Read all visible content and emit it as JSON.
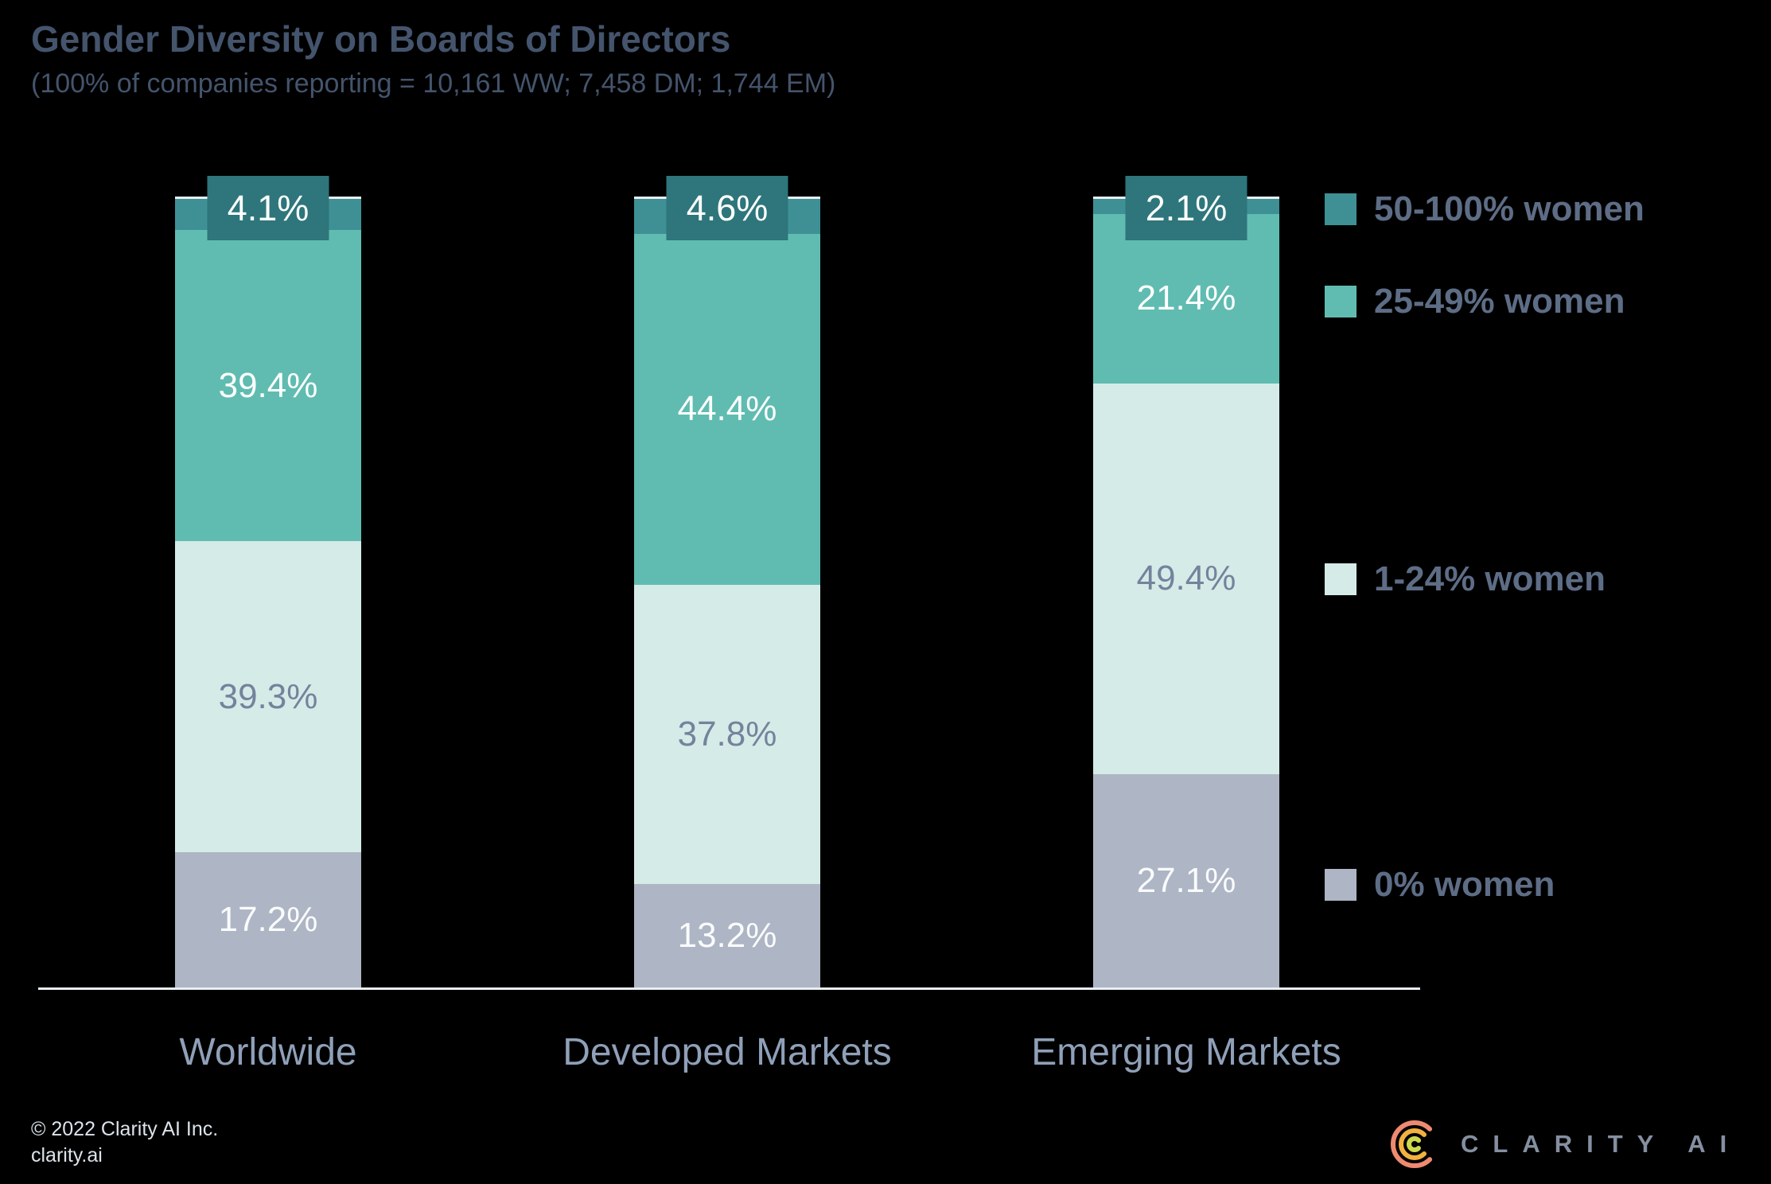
{
  "header": {
    "title": "Gender Diversity on Boards of Directors",
    "subtitle": "(100% of companies reporting = 10,161 WW; 7,458 DM; 1,744 EM)"
  },
  "chart_data": {
    "type": "bar",
    "stacked": true,
    "title": "Gender Diversity on Boards of Directors",
    "subtitle": "(100% of companies reporting = 10,161 WW; 7,458 DM; 1,744 EM)",
    "categories": [
      "Worldwide",
      "Developed Markets",
      "Emerging Markets"
    ],
    "series": [
      {
        "name": "0% women",
        "values": [
          17.2,
          13.2,
          27.1
        ],
        "color": "#aeb5c4",
        "label_color": "#fafbfc"
      },
      {
        "name": "1-24% women",
        "values": [
          39.3,
          37.8,
          49.4
        ],
        "color": "#d5ebe7",
        "label_color": "#74839c"
      },
      {
        "name": "25-49% women",
        "values": [
          39.4,
          44.4,
          21.4
        ],
        "color": "#60bcb1",
        "label_color": "#ffffff"
      },
      {
        "name": "50-100% women",
        "values": [
          4.1,
          4.6,
          2.1
        ],
        "color": "#3e9094",
        "label_color": "#ffffff",
        "badge_color": "#2e767b"
      }
    ],
    "value_suffix": "%",
    "ylim": [
      0,
      100
    ],
    "grid": false,
    "legend_position": "right",
    "axis_color": "#e8eef4"
  },
  "legend": {
    "items": [
      {
        "label": "50-100% women",
        "color": "#3e9094"
      },
      {
        "label": "25-49% women",
        "color": "#60bcb1"
      },
      {
        "label": "1-24% women",
        "color": "#d5ebe7"
      },
      {
        "label": "0% women",
        "color": "#aeb5c4"
      }
    ]
  },
  "footer": {
    "copyright": "© 2022 Clarity AI Inc.",
    "website": "clarity.ai",
    "brand": "CLARITY AI"
  }
}
